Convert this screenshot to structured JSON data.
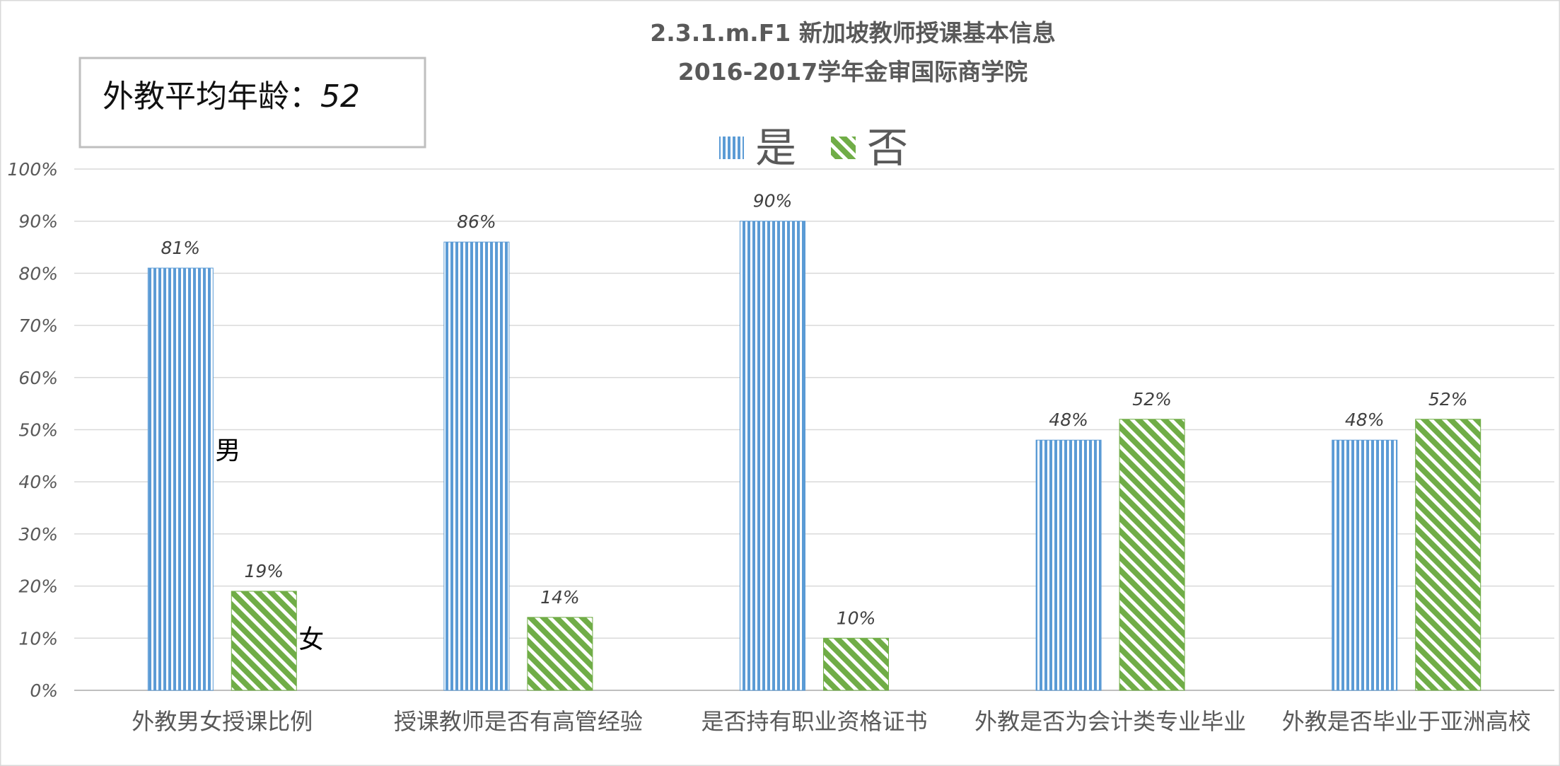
{
  "chart_data": {
    "type": "bar",
    "title": "2.3.1.m.F1 新加坡教师授课基本信息",
    "subtitle": "2016-2017学年金审国际商学院",
    "xlabel": "",
    "ylabel": "",
    "categories": [
      "外教男女授课比例",
      "授课教师是否有高管经验",
      "是否持有职业资格证书",
      "外教是否为会计类专业毕业",
      "外教是否毕业于亚洲高校"
    ],
    "series": [
      {
        "name": "是",
        "values": [
          81,
          86,
          90,
          48,
          48
        ],
        "labels": [
          "81%",
          "86%",
          "90%",
          "48%",
          "48%"
        ],
        "color": "#5b9bd5",
        "pattern": "vertical-stripes"
      },
      {
        "name": "否",
        "values": [
          19,
          14,
          10,
          52,
          52
        ],
        "labels": [
          "19%",
          "14%",
          "10%",
          "52%",
          "52%"
        ],
        "color": "#70ad47",
        "pattern": "downward-diagonal-stripes"
      }
    ],
    "ylim": [
      0,
      100
    ],
    "y_ticks": [
      "0%",
      "10%",
      "20%",
      "30%",
      "40%",
      "50%",
      "60%",
      "70%",
      "80%",
      "90%",
      "100%"
    ],
    "grid": true,
    "legend_position": "top-center",
    "annotations": [
      {
        "text": "男",
        "series": 0,
        "category": 0
      },
      {
        "text": "女",
        "series": 1,
        "category": 0
      }
    ]
  },
  "info_box": {
    "label": "外教平均年龄：",
    "value": "52"
  }
}
